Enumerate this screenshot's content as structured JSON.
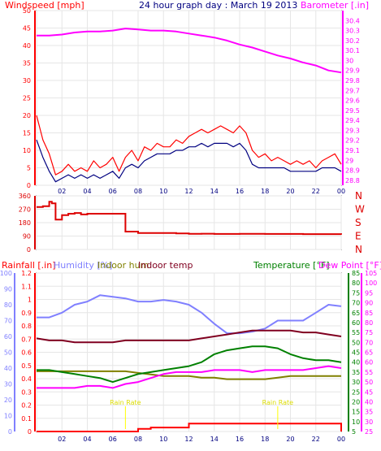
{
  "header": {
    "windspeed_label": "Windspeed [mph]",
    "title": "24 hour graph day : March 19 2013",
    "barometer_label": "Barometer [.in]"
  },
  "bottom_header": {
    "rainfall_label": "Rainfall [.in]",
    "humidity_label": "Humidity [%]",
    "indoor_hum_label": "Indoor hum",
    "indoor_temp_label": "Indoor temp",
    "temperature_label": "Temperature [°F]",
    "dewpoint_label": "Dew Point [°F]"
  },
  "colors": {
    "wind": "#ff0000",
    "wind_avg": "#000080",
    "barometer": "#ff00ff",
    "direction": "#dd0000",
    "rain": "#ff0000",
    "humidity": "#8080ff",
    "indoor_hum": "#808000",
    "indoor_temp": "#800020",
    "temperature": "#008000",
    "dewpoint": "#ff00ff",
    "title": "#000080"
  },
  "chart_data": [
    {
      "type": "line",
      "id": "wind-barometer",
      "x_tick_labels": [
        "02",
        "04",
        "06",
        "08",
        "10",
        "12",
        "14",
        "16",
        "18",
        "20",
        "22",
        "00"
      ],
      "y_left": {
        "ticks": [
          "0",
          "5",
          "10",
          "15",
          "20",
          "25",
          "30",
          "35",
          "40",
          "45",
          "50"
        ],
        "ylim": [
          0,
          50
        ],
        "label": "Windspeed [mph]"
      },
      "y_right": {
        "ticks": [
          "28.8",
          "28.9",
          "29",
          "29.1",
          "29.2",
          "29.3",
          "29.4",
          "29.5",
          "29.6",
          "29.7",
          "29.8",
          "29.9",
          "30",
          "30.1",
          "30.2",
          "30.3",
          "30.4"
        ],
        "ylim": [
          28.75,
          30.5
        ],
        "label": "Barometer [.in]"
      },
      "series": [
        {
          "name": "Barometer",
          "axis": "right",
          "x": [
            0,
            1,
            2,
            3,
            4,
            5,
            6,
            7,
            8,
            9,
            10,
            11,
            12,
            13,
            14,
            15,
            16,
            17,
            18,
            19,
            20,
            21,
            22,
            23,
            24
          ],
          "values": [
            30.25,
            30.25,
            30.26,
            30.28,
            30.29,
            30.29,
            30.3,
            30.32,
            30.31,
            30.3,
            30.3,
            30.29,
            30.27,
            30.25,
            30.23,
            30.2,
            30.16,
            30.13,
            30.09,
            30.05,
            30.02,
            29.98,
            29.95,
            29.9,
            29.88
          ]
        },
        {
          "name": "Gust",
          "axis": "left",
          "x": [
            0,
            0.5,
            1,
            1.5,
            2,
            2.5,
            3,
            3.5,
            4,
            4.5,
            5,
            5.5,
            6,
            6.5,
            7,
            7.5,
            8,
            8.5,
            9,
            9.5,
            10,
            10.5,
            11,
            11.5,
            12,
            12.5,
            13,
            13.5,
            14,
            14.5,
            15,
            15.5,
            16,
            16.5,
            17,
            17.5,
            18,
            18.5,
            19,
            19.5,
            20,
            20.5,
            21,
            21.5,
            22,
            22.5,
            23,
            23.5,
            24
          ],
          "values": [
            20,
            13,
            9,
            3,
            4,
            6,
            4,
            5,
            4,
            7,
            5,
            6,
            8,
            4,
            8,
            10,
            7,
            11,
            10,
            12,
            11,
            11,
            13,
            12,
            14,
            15,
            16,
            15,
            16,
            17,
            16,
            15,
            17,
            15,
            10,
            8,
            9,
            7,
            8,
            7,
            6,
            7,
            6,
            7,
            5,
            7,
            8,
            9,
            6
          ]
        },
        {
          "name": "Wind speed",
          "axis": "left",
          "x": [
            0,
            0.5,
            1,
            1.5,
            2,
            2.5,
            3,
            3.5,
            4,
            4.5,
            5,
            5.5,
            6,
            6.5,
            7,
            7.5,
            8,
            8.5,
            9,
            9.5,
            10,
            10.5,
            11,
            11.5,
            12,
            12.5,
            13,
            13.5,
            14,
            14.5,
            15,
            15.5,
            16,
            16.5,
            17,
            17.5,
            18,
            18.5,
            19,
            19.5,
            20,
            20.5,
            21,
            21.5,
            22,
            22.5,
            23,
            23.5,
            24
          ],
          "values": [
            13,
            8,
            4,
            1,
            2,
            3,
            2,
            3,
            2,
            3,
            2,
            3,
            4,
            2,
            5,
            6,
            5,
            7,
            8,
            9,
            9,
            9,
            10,
            10,
            11,
            11,
            12,
            11,
            12,
            12,
            12,
            11,
            12,
            10,
            6,
            5,
            5,
            5,
            5,
            5,
            4,
            4,
            4,
            4,
            4,
            5,
            5,
            5,
            4
          ]
        }
      ]
    },
    {
      "type": "line",
      "id": "wind-direction",
      "x_tick_labels": [
        "02",
        "04",
        "06",
        "08",
        "10",
        "12",
        "14",
        "16",
        "18",
        "20",
        "22",
        "00"
      ],
      "y_left": {
        "ticks": [
          "0",
          "90",
          "180",
          "270",
          "360"
        ],
        "ylim": [
          0,
          360
        ]
      },
      "y_right_labels": [
        "N",
        "W",
        "S",
        "E",
        "N"
      ],
      "series": [
        {
          "name": "Wind direction",
          "x": [
            0,
            0.5,
            1,
            1.2,
            1.5,
            2,
            2.5,
            3,
            3.5,
            4,
            5,
            6,
            6.5,
            7,
            8,
            9,
            10,
            11,
            12,
            13,
            14,
            15,
            16,
            17,
            18,
            19,
            20,
            21,
            22,
            23,
            24
          ],
          "values": [
            285,
            290,
            320,
            310,
            200,
            230,
            240,
            245,
            235,
            240,
            240,
            240,
            240,
            120,
            110,
            110,
            110,
            108,
            105,
            106,
            104,
            104,
            105,
            105,
            104,
            104,
            104,
            103,
            103,
            103,
            100
          ]
        }
      ]
    },
    {
      "type": "line",
      "id": "weather-bottom",
      "x_tick_labels": [
        "02",
        "04",
        "06",
        "08",
        "10",
        "12",
        "14",
        "16",
        "18",
        "20",
        "22",
        "00"
      ],
      "rain_axis": {
        "ticks": [
          "0",
          "0.1",
          "0.2",
          "0.3",
          "0.4",
          "0.5",
          "0.6",
          "0.7",
          "0.8",
          "0.9",
          "1",
          "1.1",
          "1.2"
        ],
        "ylim": [
          0,
          1.2
        ],
        "label": "Rainfall [.in]"
      },
      "humidity_axis": {
        "ticks": [
          "0",
          "10",
          "20",
          "30",
          "40",
          "50",
          "60",
          "70",
          "80",
          "90",
          "100"
        ],
        "ylim": [
          0,
          100
        ],
        "label": "Humidity [%]"
      },
      "temperature_axis": {
        "ticks": [
          "5",
          "10",
          "15",
          "20",
          "25",
          "30",
          "35",
          "40",
          "45",
          "50",
          "55",
          "60",
          "65",
          "70",
          "75",
          "80",
          "85"
        ],
        "ylim": [
          5,
          85
        ],
        "label": "Temperature [°F]"
      },
      "dewpoint_axis": {
        "ticks": [
          "25",
          "30",
          "35",
          "40",
          "45",
          "50",
          "55",
          "60",
          "65",
          "70",
          "75",
          "80",
          "85",
          "90",
          "95",
          "100",
          "105"
        ],
        "ylim": [
          25,
          105
        ],
        "label": "Dew Point [°F]"
      },
      "annotations": [
        {
          "text": "Rain Rate",
          "x": 7
        },
        {
          "text": "Rain Rate",
          "x": 19
        }
      ],
      "series": [
        {
          "name": "Humidity",
          "axis": "humidity",
          "x": [
            0,
            1,
            2,
            3,
            4,
            5,
            6,
            7,
            8,
            9,
            10,
            11,
            12,
            13,
            14,
            15,
            16,
            17,
            18,
            19,
            20,
            21,
            22,
            23,
            24
          ],
          "values": [
            72,
            72,
            75,
            80,
            82,
            86,
            85,
            84,
            82,
            82,
            83,
            82,
            80,
            75,
            68,
            62,
            62,
            63,
            65,
            70,
            70,
            70,
            75,
            80,
            79
          ]
        },
        {
          "name": "Indoor hum",
          "axis": "humidity",
          "x": [
            0,
            1,
            2,
            3,
            4,
            5,
            6,
            7,
            8,
            9,
            10,
            11,
            12,
            13,
            14,
            15,
            16,
            17,
            18,
            19,
            20,
            21,
            22,
            23,
            24
          ],
          "values": [
            38,
            38,
            38,
            38,
            38,
            38,
            38,
            38,
            37,
            36,
            35,
            35,
            35,
            34,
            34,
            33,
            33,
            33,
            33,
            34,
            35,
            35,
            35,
            35,
            35
          ]
        },
        {
          "name": "Indoor temp",
          "axis": "temperature",
          "x": [
            0,
            1,
            2,
            3,
            4,
            5,
            6,
            7,
            8,
            9,
            10,
            11,
            12,
            13,
            14,
            15,
            16,
            17,
            18,
            19,
            20,
            21,
            22,
            23,
            24
          ],
          "values": [
            52,
            51,
            51,
            50,
            50,
            50,
            50,
            51,
            51,
            51,
            51,
            51,
            51,
            52,
            53,
            54,
            55,
            56,
            56,
            56,
            56,
            55,
            55,
            54,
            53
          ]
        },
        {
          "name": "Temperature",
          "axis": "temperature",
          "x": [
            0,
            1,
            2,
            3,
            4,
            5,
            6,
            7,
            8,
            9,
            10,
            11,
            12,
            13,
            14,
            15,
            16,
            17,
            18,
            19,
            20,
            21,
            22,
            23,
            24
          ],
          "values": [
            36,
            36,
            35,
            34,
            33,
            32,
            30,
            32,
            34,
            35,
            36,
            37,
            38,
            40,
            44,
            46,
            47,
            48,
            48,
            47,
            44,
            42,
            41,
            41,
            40
          ]
        },
        {
          "name": "Dew Point",
          "axis": "dewpoint",
          "x": [
            0,
            1,
            2,
            3,
            4,
            5,
            6,
            7,
            8,
            9,
            10,
            11,
            12,
            13,
            14,
            15,
            16,
            17,
            18,
            19,
            20,
            21,
            22,
            23,
            24
          ],
          "values": [
            47,
            47,
            47,
            47,
            48,
            48,
            47,
            49,
            50,
            52,
            54,
            55,
            55,
            55,
            56,
            56,
            56,
            55,
            56,
            56,
            56,
            56,
            57,
            58,
            57
          ]
        },
        {
          "name": "Rainfall",
          "axis": "rain",
          "x": [
            0,
            1,
            2,
            3,
            4,
            5,
            6,
            7,
            8,
            9,
            10,
            11,
            12,
            13,
            14,
            15,
            16,
            17,
            18,
            19,
            20,
            21,
            22,
            23,
            24
          ],
          "values": [
            0,
            0,
            0,
            0,
            0,
            0,
            0,
            0,
            0.02,
            0.03,
            0.03,
            0.03,
            0.06,
            0.06,
            0.06,
            0.06,
            0.06,
            0.06,
            0.06,
            0.06,
            0.06,
            0.06,
            0.06,
            0.06,
            0
          ]
        }
      ]
    }
  ]
}
